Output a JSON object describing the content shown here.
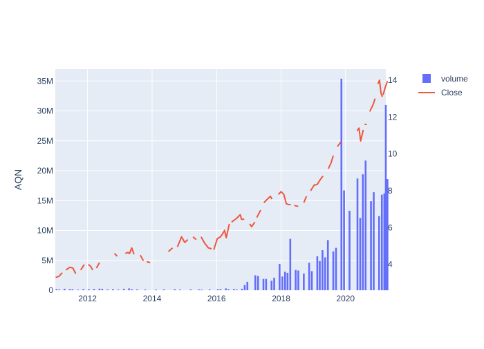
{
  "chart_data": {
    "type": "bar",
    "title": "",
    "ylabel": "AQN",
    "xlabel": "",
    "x_ticks": [
      "2012",
      "2014",
      "2016",
      "2018",
      "2020"
    ],
    "y_left_ticks": [
      "0",
      "5M",
      "10M",
      "15M",
      "20M",
      "25M",
      "30M",
      "35M"
    ],
    "y_right_ticks": [
      "4",
      "6",
      "8",
      "10",
      "12",
      "14"
    ],
    "ylim_left": [
      0,
      37000000
    ],
    "ylim_right": [
      2.6,
      14.6
    ],
    "xlim": [
      "2011-01-01",
      "2021-04-01"
    ],
    "legend": {
      "position": "top-right",
      "entries": [
        "volume",
        "Close"
      ]
    },
    "colors": {
      "volume": "#636efa",
      "close": "#ef553b",
      "plot_bg": "#e5ecf6",
      "grid": "#ffffff",
      "text": "#2a3f5f"
    },
    "series": [
      {
        "name": "volume",
        "type": "bar",
        "axis": "left",
        "points": [
          [
            "2011-01-15",
            200000
          ],
          [
            "2011-02-15",
            150000
          ],
          [
            "2011-04-15",
            250000
          ],
          [
            "2011-06-15",
            200000
          ],
          [
            "2011-07-15",
            180000
          ],
          [
            "2011-09-15",
            120000
          ],
          [
            "2011-11-15",
            200000
          ],
          [
            "2012-01-15",
            180000
          ],
          [
            "2012-03-15",
            220000
          ],
          [
            "2012-05-15",
            260000
          ],
          [
            "2012-06-15",
            240000
          ],
          [
            "2012-08-15",
            150000
          ],
          [
            "2012-10-15",
            200000
          ],
          [
            "2012-12-15",
            130000
          ],
          [
            "2013-02-15",
            250000
          ],
          [
            "2013-04-15",
            300000
          ],
          [
            "2013-05-15",
            180000
          ],
          [
            "2013-07-15",
            150000
          ],
          [
            "2013-10-15",
            140000
          ],
          [
            "2014-02-15",
            120000
          ],
          [
            "2014-05-15",
            150000
          ],
          [
            "2014-09-15",
            180000
          ],
          [
            "2014-11-15",
            140000
          ],
          [
            "2015-03-15",
            160000
          ],
          [
            "2015-06-15",
            150000
          ],
          [
            "2015-07-15",
            120000
          ],
          [
            "2015-10-15",
            150000
          ],
          [
            "2016-01-15",
            180000
          ],
          [
            "2016-02-15",
            200000
          ],
          [
            "2016-04-15",
            300000
          ],
          [
            "2016-05-15",
            180000
          ],
          [
            "2016-07-15",
            200000
          ],
          [
            "2016-08-15",
            150000
          ],
          [
            "2016-10-15",
            250000
          ],
          [
            "2016-11-15",
            900000
          ],
          [
            "2016-12-15",
            1400000
          ],
          [
            "2017-03-15",
            2500000
          ],
          [
            "2017-04-15",
            2400000
          ],
          [
            "2017-06-15",
            1900000
          ],
          [
            "2017-07-15",
            1900000
          ],
          [
            "2017-09-15",
            1600000
          ],
          [
            "2017-10-15",
            2100000
          ],
          [
            "2017-12-15",
            4400000
          ],
          [
            "2018-01-15",
            2300000
          ],
          [
            "2018-02-15",
            3100000
          ],
          [
            "2018-03-15",
            2900000
          ],
          [
            "2018-04-15",
            8600000
          ],
          [
            "2018-06-15",
            3400000
          ],
          [
            "2018-07-15",
            3300000
          ],
          [
            "2018-09-15",
            2800000
          ],
          [
            "2018-11-15",
            4600000
          ],
          [
            "2018-12-15",
            3200000
          ],
          [
            "2019-02-15",
            5700000
          ],
          [
            "2019-03-15",
            4900000
          ],
          [
            "2019-04-15",
            6700000
          ],
          [
            "2019-05-15",
            5500000
          ],
          [
            "2019-06-15",
            8400000
          ],
          [
            "2019-08-15",
            6500000
          ],
          [
            "2019-09-15",
            7100000
          ],
          [
            "2019-11-15",
            35400000
          ],
          [
            "2019-12-15",
            16700000
          ],
          [
            "2020-02-15",
            13300000
          ],
          [
            "2020-05-15",
            18700000
          ],
          [
            "2020-06-15",
            12100000
          ],
          [
            "2020-07-15",
            19400000
          ],
          [
            "2020-08-15",
            21700000
          ],
          [
            "2020-10-15",
            14900000
          ],
          [
            "2020-11-15",
            16400000
          ],
          [
            "2021-01-15",
            12400000
          ],
          [
            "2021-02-15",
            16000000
          ],
          [
            "2021-03-15",
            16200000
          ],
          [
            "2021-04-01",
            31000000
          ],
          [
            "2021-04-20",
            18600000
          ]
        ]
      },
      {
        "name": "Close",
        "type": "line",
        "axis": "right",
        "segments": [
          [
            [
              "2011-01-05",
              3.3
            ],
            [
              "2011-02-10",
              3.35
            ],
            [
              "2011-03-20",
              3.55
            ]
          ],
          [
            [
              "2011-05-01",
              3.7
            ],
            [
              "2011-06-15",
              3.85
            ],
            [
              "2011-07-20",
              3.8
            ],
            [
              "2011-08-20",
              3.5
            ]
          ],
          [
            [
              "2011-10-15",
              3.7
            ],
            [
              "2011-11-25",
              4.0
            ]
          ],
          [
            [
              "2012-01-10",
              4.0
            ],
            [
              "2012-02-05",
              3.9
            ],
            [
              "2012-02-28",
              3.7
            ]
          ],
          [
            [
              "2012-04-10",
              3.8
            ],
            [
              "2012-05-15",
              4.1
            ]
          ],
          [
            [
              "2012-11-01",
              4.6
            ],
            [
              "2012-12-01",
              4.45
            ]
          ],
          [
            [
              "2013-03-05",
              4.6
            ],
            [
              "2013-04-01",
              4.65
            ],
            [
              "2013-04-20",
              4.6
            ],
            [
              "2013-05-15",
              4.9
            ],
            [
              "2013-06-10",
              4.55
            ]
          ],
          [
            [
              "2013-08-20",
              4.5
            ],
            [
              "2013-09-25",
              4.2
            ]
          ],
          [
            [
              "2013-11-01",
              4.15
            ],
            [
              "2013-12-10",
              4.1
            ]
          ],
          [
            [
              "2014-07-05",
              4.7
            ],
            [
              "2014-08-20",
              4.9
            ]
          ],
          [
            [
              "2014-10-15",
              4.95
            ],
            [
              "2014-12-01",
              5.5
            ],
            [
              "2015-01-05",
              5.2
            ],
            [
              "2015-02-10",
              5.35
            ]
          ],
          [
            [
              "2015-04-10",
              5.5
            ],
            [
              "2015-05-15",
              5.35
            ]
          ],
          [
            [
              "2015-07-10",
              5.5
            ],
            [
              "2015-08-20",
              5.15
            ],
            [
              "2015-10-01",
              4.9
            ],
            [
              "2015-11-05",
              4.85
            ]
          ],
          [
            [
              "2015-12-01",
              4.8
            ],
            [
              "2016-01-10",
              5.4
            ],
            [
              "2016-02-15",
              5.5
            ],
            [
              "2016-03-15",
              5.7
            ],
            [
              "2016-04-01",
              5.85
            ],
            [
              "2016-04-20",
              5.45
            ],
            [
              "2016-05-25",
              6.2
            ]
          ],
          [
            [
              "2016-06-20",
              6.3
            ],
            [
              "2016-08-15",
              6.5
            ],
            [
              "2016-09-25",
              6.7
            ],
            [
              "2016-10-10",
              6.45
            ],
            [
              "2016-11-10",
              6.45
            ]
          ],
          [
            [
              "2017-01-10",
              6.2
            ],
            [
              "2017-02-01",
              6.05
            ],
            [
              "2017-03-10",
              6.3
            ]
          ],
          [
            [
              "2017-04-01",
              6.55
            ],
            [
              "2017-05-15",
              6.95
            ]
          ],
          [
            [
              "2017-06-20",
              7.35
            ],
            [
              "2017-07-20",
              7.5
            ],
            [
              "2017-09-01",
              7.7
            ],
            [
              "2017-09-20",
              7.55
            ]
          ],
          [
            [
              "2017-12-01",
              7.8
            ],
            [
              "2018-01-01",
              7.95
            ],
            [
              "2018-02-01",
              7.8
            ],
            [
              "2018-03-01",
              7.3
            ],
            [
              "2018-03-25",
              7.25
            ],
            [
              "2018-04-20",
              7.25
            ]
          ],
          [
            [
              "2018-06-01",
              7.2
            ],
            [
              "2018-07-15",
              7.15
            ]
          ],
          [
            [
              "2018-09-15",
              7.35
            ],
            [
              "2018-10-15",
              7.7
            ]
          ],
          [
            [
              "2018-12-01",
              8.0
            ],
            [
              "2019-01-10",
              8.3
            ],
            [
              "2019-02-15",
              8.35
            ],
            [
              "2019-03-20",
              8.6
            ],
            [
              "2019-04-20",
              8.8
            ]
          ],
          [
            [
              "2019-06-20",
              9.2
            ],
            [
              "2019-07-20",
              9.5
            ],
            [
              "2019-08-15",
              9.9
            ]
          ],
          [
            [
              "2019-10-01",
              10.4
            ],
            [
              "2019-11-10",
              10.65
            ]
          ],
          [
            [
              "2020-05-10",
              11.25
            ],
            [
              "2020-06-01",
              11.4
            ],
            [
              "2020-06-20",
              10.7
            ],
            [
              "2020-07-20",
              11.3
            ]
          ],
          [
            [
              "2020-08-15",
              11.6
            ]
          ],
          [
            [
              "2020-10-01",
              12.3
            ],
            [
              "2020-11-10",
              12.7
            ],
            [
              "2020-12-01",
              13.0
            ]
          ],
          [
            [
              "2021-01-01",
              13.8
            ],
            [
              "2021-01-20",
              14.0
            ],
            [
              "2021-02-05",
              13.3
            ],
            [
              "2021-02-20",
              13.1
            ]
          ],
          [
            [
              "2021-03-01",
              13.2
            ],
            [
              "2021-03-25",
              13.6
            ],
            [
              "2021-04-20",
              13.95
            ]
          ]
        ]
      }
    ]
  }
}
